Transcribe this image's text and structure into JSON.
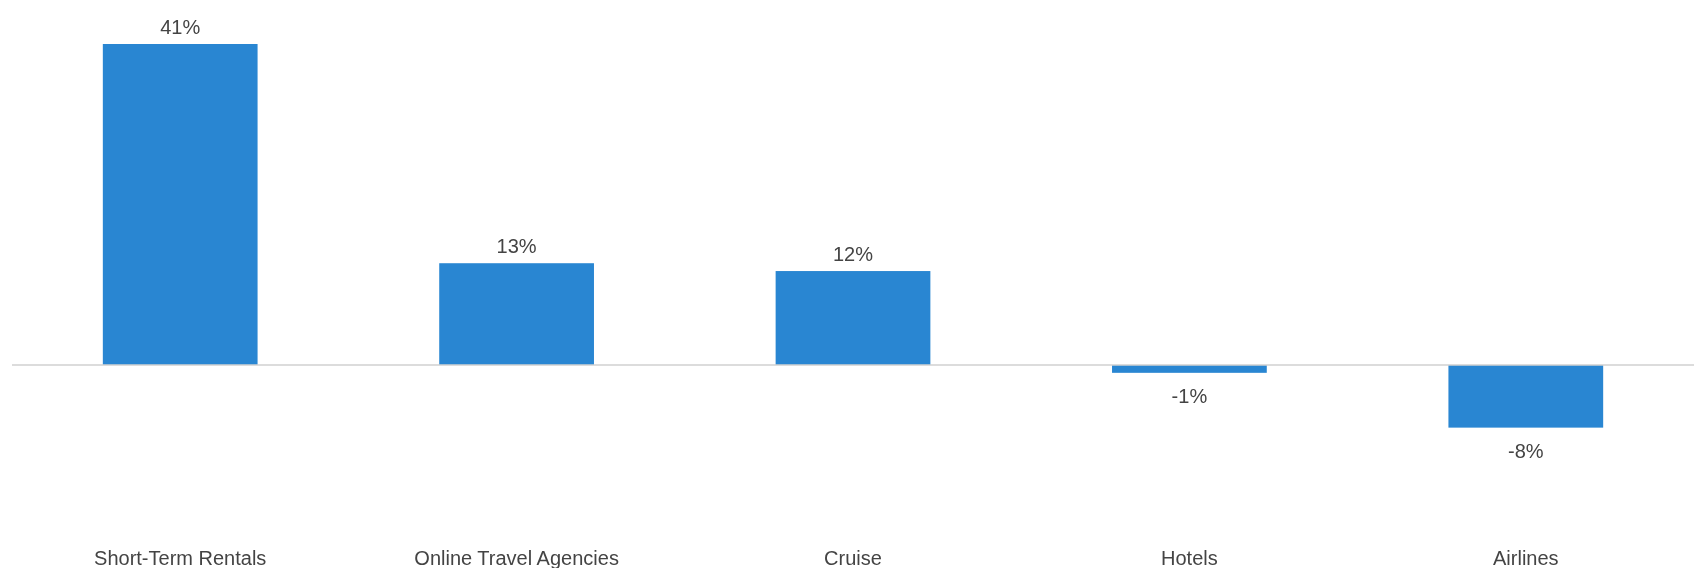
{
  "chart_data": {
    "type": "bar",
    "categories": [
      "Short-Term Rentals",
      "Online Travel Agencies",
      "Cruise",
      "Hotels",
      "Airlines"
    ],
    "values": [
      41,
      13,
      12,
      -1,
      -8
    ],
    "color": "#2986d2",
    "value_labels": [
      "41%",
      "13%",
      "12%",
      "-1%",
      "-8%"
    ]
  }
}
